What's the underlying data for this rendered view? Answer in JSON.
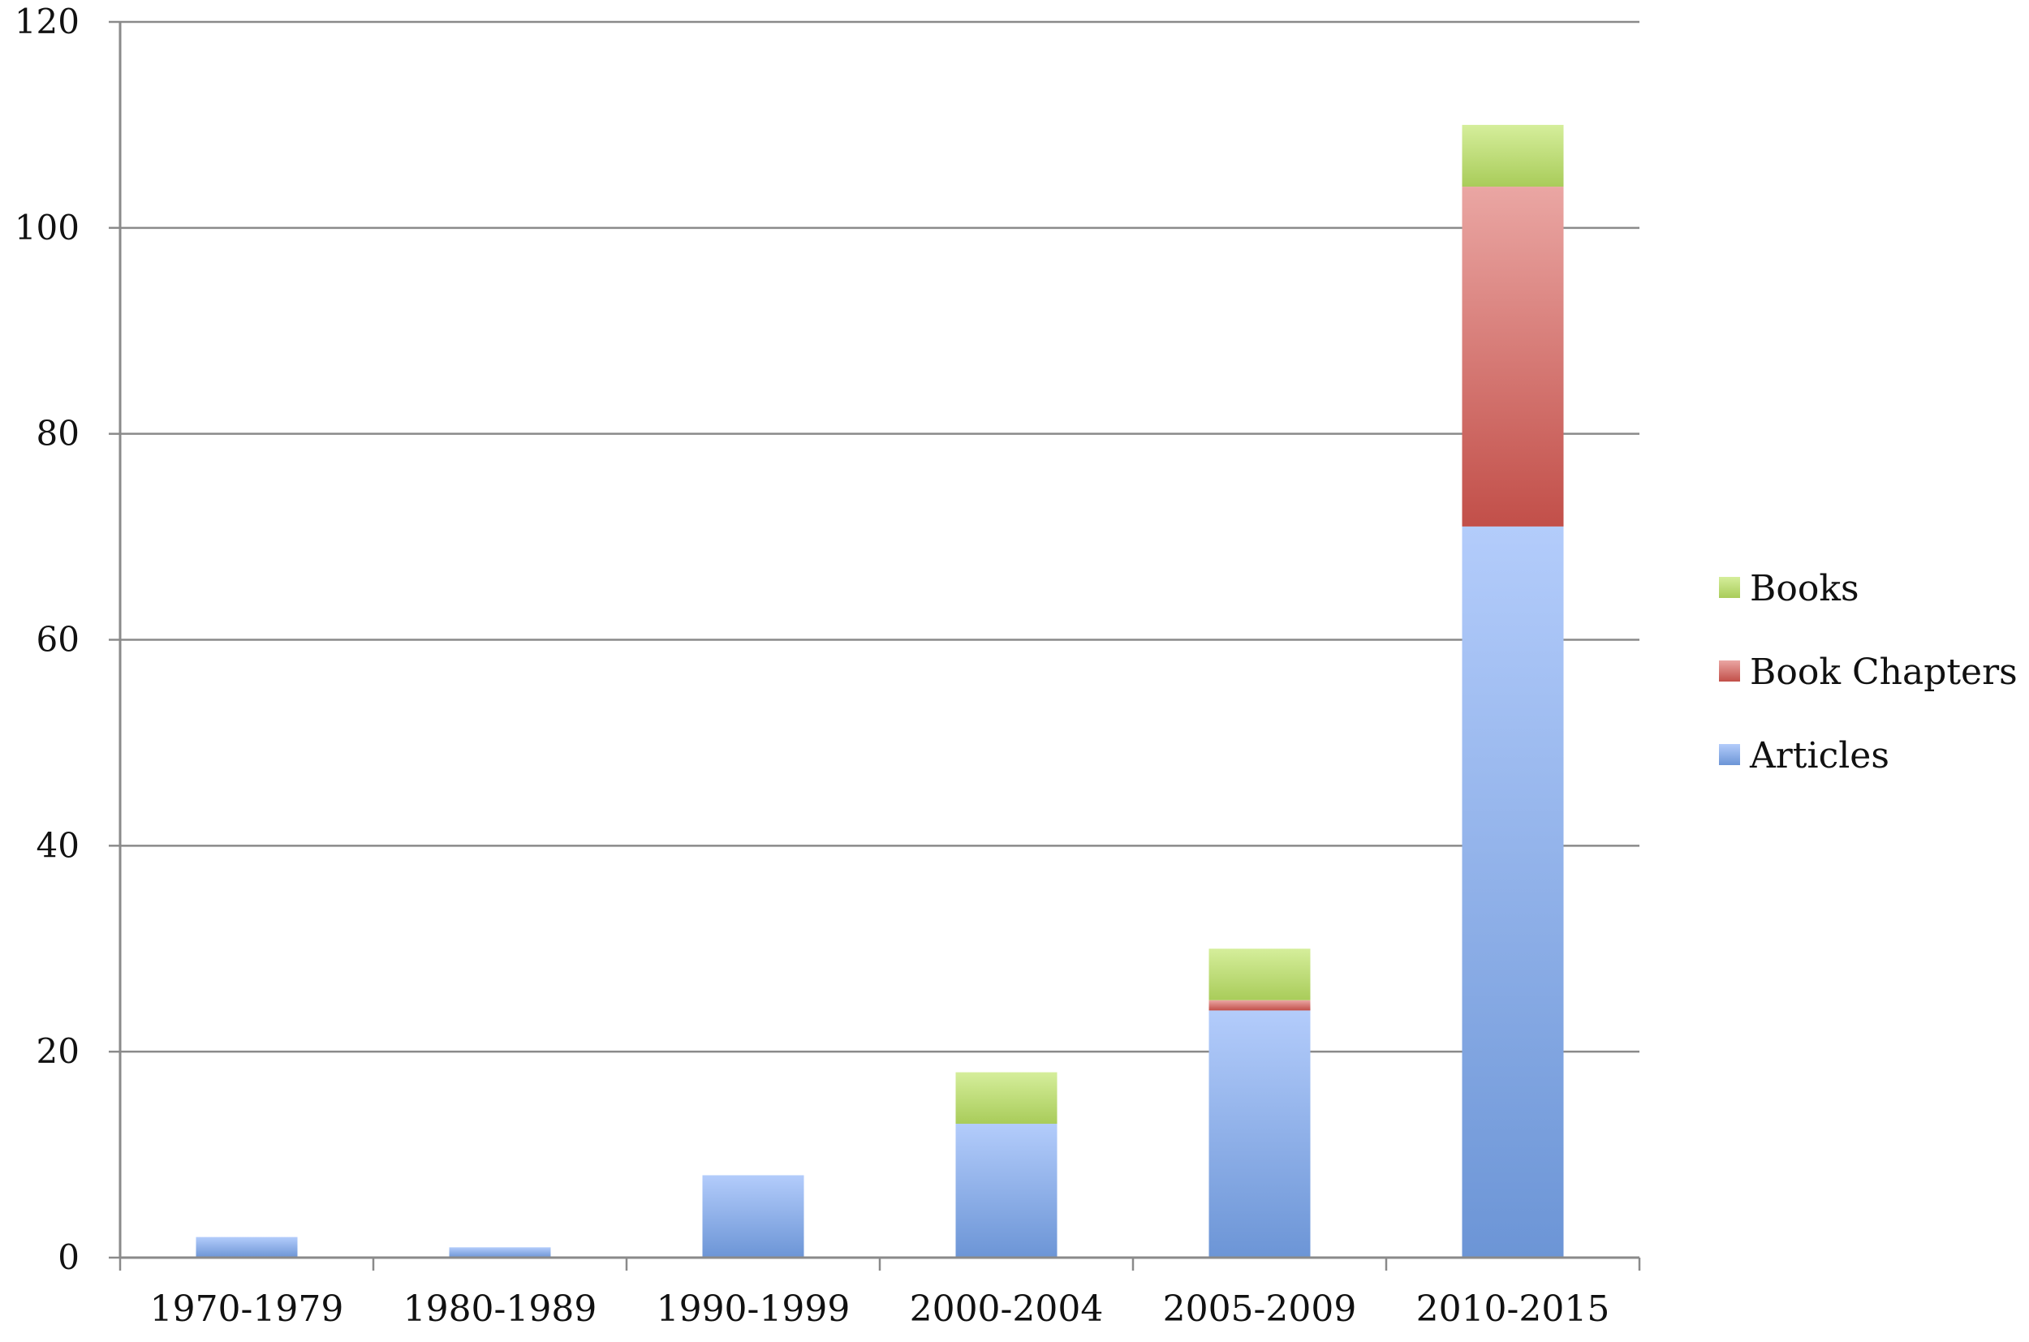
{
  "chart_data": {
    "type": "bar",
    "stacked": true,
    "categories": [
      "1970-1979",
      "1980-1989",
      "1990-1999",
      "2000-2004",
      "2005-2009",
      "2010-2015"
    ],
    "series": [
      {
        "name": "Articles",
        "values": [
          2,
          1,
          8,
          13,
          24,
          71
        ],
        "color": "#7fa3e2"
      },
      {
        "name": "Book Chapters",
        "values": [
          0,
          0,
          0,
          0,
          1,
          33
        ],
        "color": "#cc6a66"
      },
      {
        "name": "Books",
        "values": [
          0,
          0,
          0,
          5,
          5,
          6
        ],
        "color": "#b5d46a"
      }
    ],
    "yticks": [
      "0",
      "20",
      "40",
      "60",
      "80",
      "100",
      "120"
    ],
    "ylim": [
      0,
      120
    ],
    "grid": true,
    "legend": {
      "position": "right",
      "entries": [
        "Books",
        "Book Chapters",
        "Articles"
      ]
    }
  }
}
